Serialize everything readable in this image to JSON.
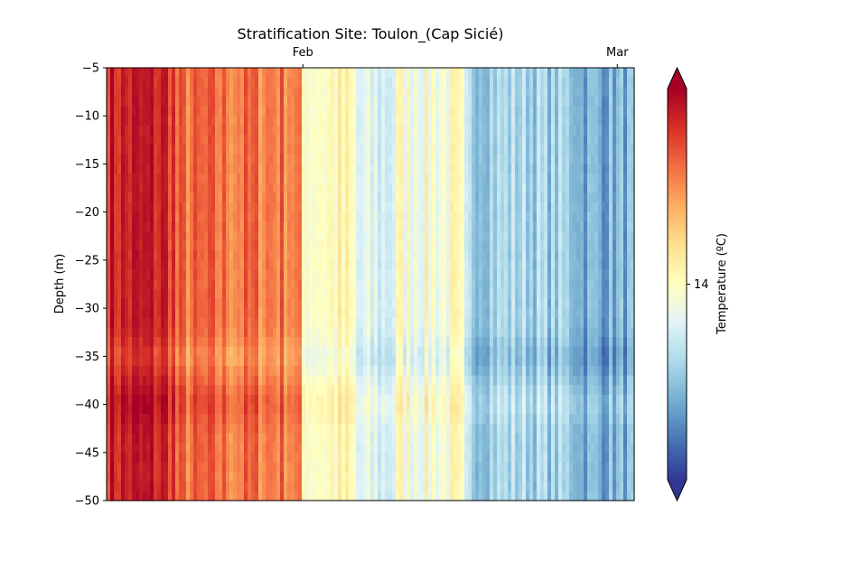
{
  "chart_data": {
    "type": "heatmap",
    "title": "Stratification Site: Toulon_(Cap Sicié)",
    "ylabel": "Depth (m)",
    "xlabel": "",
    "ylim": [
      -50,
      -5
    ],
    "y_ticks": [
      {
        "value": -5,
        "label": "−5"
      },
      {
        "value": -10,
        "label": "−10"
      },
      {
        "value": -15,
        "label": "−15"
      },
      {
        "value": -20,
        "label": "−20"
      },
      {
        "value": -25,
        "label": "−25"
      },
      {
        "value": -30,
        "label": "−30"
      },
      {
        "value": -35,
        "label": "−35"
      },
      {
        "value": -40,
        "label": "−40"
      },
      {
        "value": -45,
        "label": "−45"
      },
      {
        "value": -50,
        "label": "−50"
      }
    ],
    "x_axis_position": "top",
    "x_ticks": [
      {
        "label": "Feb",
        "fraction": 0.372
      },
      {
        "label": "Mar",
        "fraction": 0.968
      }
    ],
    "colorbar": {
      "label": "Temperature (ºC)",
      "colormap": "RdYlBu_r",
      "extend": "both",
      "range": [
        12.0,
        16.0
      ],
      "ticks": [
        {
          "value": 14,
          "label": "14"
        }
      ],
      "colors": [
        "#313695",
        "#4575b4",
        "#74add1",
        "#abd9e9",
        "#e0f3f8",
        "#ffffbf",
        "#fee090",
        "#fdae61",
        "#f46d43",
        "#d73027",
        "#a50026"
      ]
    },
    "grid": false,
    "series_description": "Water temperature vs depth over time; warm (~15.5–16 ºC) in late January, cooling to ~14 ºC in early February and ~13 ºC by late February/March, slightly cooler band near −35 m.",
    "time_segments": [
      {
        "start": 0.0,
        "end": 0.13,
        "temp": 15.7
      },
      {
        "start": 0.13,
        "end": 0.372,
        "temp": 15.15
      },
      {
        "start": 0.372,
        "end": 0.47,
        "temp": 14.05
      },
      {
        "start": 0.47,
        "end": 0.55,
        "temp": 13.55
      },
      {
        "start": 0.55,
        "end": 0.68,
        "temp": 13.9
      },
      {
        "start": 0.68,
        "end": 0.82,
        "temp": 13.2
      },
      {
        "start": 0.82,
        "end": 0.9,
        "temp": 13.1
      },
      {
        "start": 0.9,
        "end": 1.0,
        "temp": 12.85
      }
    ],
    "depth_anomalies": [
      {
        "depth": -35,
        "delta": -0.2
      },
      {
        "depth": -40,
        "delta": 0.15
      }
    ]
  }
}
